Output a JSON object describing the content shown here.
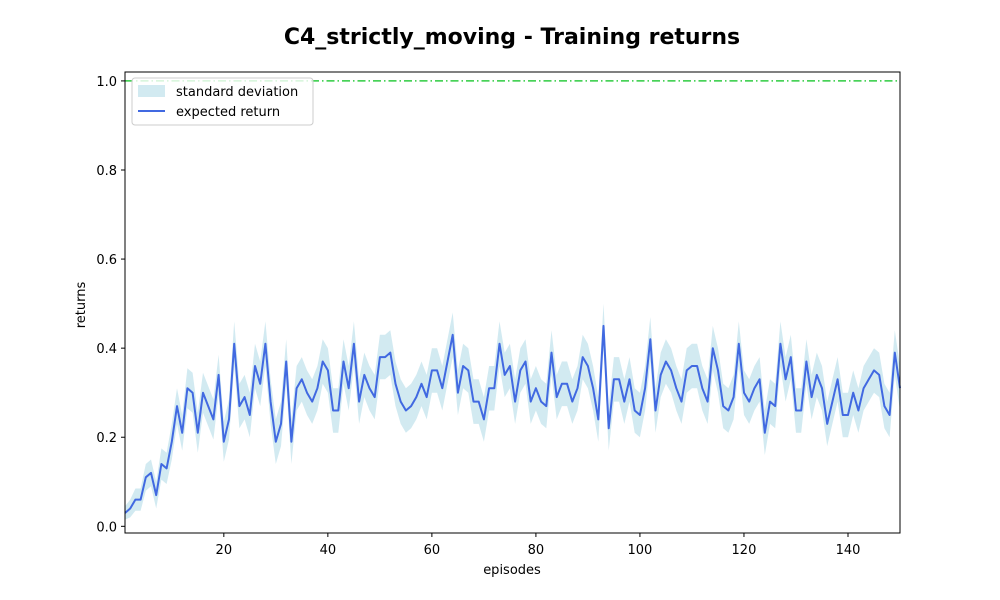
{
  "chart_data": {
    "type": "line",
    "title": "C4_strictly_moving - Training returns",
    "xlabel": "episodes",
    "ylabel": "returns",
    "xlim": [
      1,
      150
    ],
    "ylim": [
      -0.015,
      1.02
    ],
    "xticks": [
      20,
      40,
      60,
      80,
      100,
      120,
      140
    ],
    "yticks": [
      0.0,
      0.2,
      0.4,
      0.6,
      0.8,
      1.0
    ],
    "ytick_labels": [
      "0.0",
      "0.2",
      "0.4",
      "0.6",
      "0.8",
      "1.0"
    ],
    "grid": false,
    "legend": {
      "placement": "top-left",
      "entries": [
        "standard deviation",
        "expected return"
      ]
    },
    "reference_line": {
      "y": 1.0,
      "style": "dash-dot",
      "color": "#2ecc40"
    },
    "colors": {
      "line": "#4169e1",
      "band": "#add8e6",
      "reference": "#2ecc40"
    },
    "series": [
      {
        "name": "expected return",
        "x": [
          1,
          2,
          3,
          4,
          5,
          6,
          7,
          8,
          9,
          10,
          11,
          12,
          13,
          14,
          15,
          16,
          17,
          18,
          19,
          20,
          21,
          22,
          23,
          24,
          25,
          26,
          27,
          28,
          29,
          30,
          31,
          32,
          33,
          34,
          35,
          36,
          37,
          38,
          39,
          40,
          41,
          42,
          43,
          44,
          45,
          46,
          47,
          48,
          49,
          50,
          51,
          52,
          53,
          54,
          55,
          56,
          57,
          58,
          59,
          60,
          61,
          62,
          63,
          64,
          65,
          66,
          67,
          68,
          69,
          70,
          71,
          72,
          73,
          74,
          75,
          76,
          77,
          78,
          79,
          80,
          81,
          82,
          83,
          84,
          85,
          86,
          87,
          88,
          89,
          90,
          91,
          92,
          93,
          94,
          95,
          96,
          97,
          98,
          99,
          100,
          101,
          102,
          103,
          104,
          105,
          106,
          107,
          108,
          109,
          110,
          111,
          112,
          113,
          114,
          115,
          116,
          117,
          118,
          119,
          120,
          121,
          122,
          123,
          124,
          125,
          126,
          127,
          128,
          129,
          130,
          131,
          132,
          133,
          134,
          135,
          136,
          137,
          138,
          139,
          140,
          141,
          142,
          143,
          144,
          145,
          146,
          147,
          148,
          149,
          150
        ],
        "values": [
          0.03,
          0.04,
          0.06,
          0.06,
          0.11,
          0.12,
          0.07,
          0.14,
          0.13,
          0.19,
          0.27,
          0.21,
          0.31,
          0.3,
          0.21,
          0.3,
          0.27,
          0.24,
          0.34,
          0.19,
          0.24,
          0.41,
          0.27,
          0.29,
          0.25,
          0.36,
          0.32,
          0.41,
          0.28,
          0.19,
          0.23,
          0.37,
          0.19,
          0.31,
          0.33,
          0.3,
          0.28,
          0.31,
          0.37,
          0.35,
          0.26,
          0.26,
          0.37,
          0.31,
          0.41,
          0.28,
          0.34,
          0.31,
          0.29,
          0.38,
          0.38,
          0.39,
          0.32,
          0.28,
          0.26,
          0.27,
          0.29,
          0.32,
          0.29,
          0.35,
          0.35,
          0.31,
          0.37,
          0.43,
          0.3,
          0.36,
          0.35,
          0.28,
          0.28,
          0.24,
          0.31,
          0.31,
          0.41,
          0.34,
          0.36,
          0.28,
          0.35,
          0.37,
          0.28,
          0.31,
          0.28,
          0.27,
          0.39,
          0.29,
          0.32,
          0.32,
          0.28,
          0.31,
          0.38,
          0.36,
          0.31,
          0.24,
          0.45,
          0.22,
          0.33,
          0.33,
          0.28,
          0.33,
          0.26,
          0.25,
          0.31,
          0.42,
          0.26,
          0.34,
          0.37,
          0.35,
          0.31,
          0.28,
          0.35,
          0.36,
          0.36,
          0.31,
          0.28,
          0.4,
          0.35,
          0.27,
          0.26,
          0.29,
          0.41,
          0.3,
          0.28,
          0.31,
          0.33,
          0.21,
          0.28,
          0.27,
          0.41,
          0.33,
          0.38,
          0.26,
          0.26,
          0.37,
          0.29,
          0.34,
          0.31,
          0.23,
          0.28,
          0.33,
          0.25,
          0.25,
          0.3,
          0.26,
          0.31,
          0.33,
          0.35,
          0.34,
          0.27,
          0.25,
          0.39,
          0.31
        ]
      },
      {
        "name": "standard deviation",
        "x": [
          1,
          2,
          3,
          4,
          5,
          6,
          7,
          8,
          9,
          10,
          11,
          12,
          13,
          14,
          15,
          16,
          17,
          18,
          19,
          20,
          21,
          22,
          23,
          24,
          25,
          26,
          27,
          28,
          29,
          30,
          31,
          32,
          33,
          34,
          35,
          36,
          37,
          38,
          39,
          40,
          41,
          42,
          43,
          44,
          45,
          46,
          47,
          48,
          49,
          50,
          51,
          52,
          53,
          54,
          55,
          56,
          57,
          58,
          59,
          60,
          61,
          62,
          63,
          64,
          65,
          66,
          67,
          68,
          69,
          70,
          71,
          72,
          73,
          74,
          75,
          76,
          77,
          78,
          79,
          80,
          81,
          82,
          83,
          84,
          85,
          86,
          87,
          88,
          89,
          90,
          91,
          92,
          93,
          94,
          95,
          96,
          97,
          98,
          99,
          100,
          101,
          102,
          103,
          104,
          105,
          106,
          107,
          108,
          109,
          110,
          111,
          112,
          113,
          114,
          115,
          116,
          117,
          118,
          119,
          120,
          121,
          122,
          123,
          124,
          125,
          126,
          127,
          128,
          129,
          130,
          131,
          132,
          133,
          134,
          135,
          136,
          137,
          138,
          139,
          140,
          141,
          142,
          143,
          144,
          145,
          146,
          147,
          148,
          149,
          150
        ],
        "spread": [
          0.015,
          0.02,
          0.025,
          0.025,
          0.03,
          0.03,
          0.03,
          0.035,
          0.035,
          0.04,
          0.04,
          0.04,
          0.045,
          0.045,
          0.045,
          0.045,
          0.045,
          0.045,
          0.045,
          0.045,
          0.045,
          0.05,
          0.05,
          0.05,
          0.05,
          0.05,
          0.05,
          0.05,
          0.05,
          0.05,
          0.05,
          0.05,
          0.05,
          0.05,
          0.05,
          0.05,
          0.05,
          0.05,
          0.05,
          0.05,
          0.05,
          0.05,
          0.05,
          0.05,
          0.05,
          0.05,
          0.05,
          0.05,
          0.05,
          0.05,
          0.05,
          0.05,
          0.05,
          0.05,
          0.05,
          0.05,
          0.05,
          0.05,
          0.05,
          0.05,
          0.05,
          0.05,
          0.05,
          0.05,
          0.05,
          0.05,
          0.05,
          0.05,
          0.05,
          0.05,
          0.05,
          0.05,
          0.05,
          0.05,
          0.05,
          0.05,
          0.05,
          0.05,
          0.05,
          0.05,
          0.05,
          0.05,
          0.05,
          0.05,
          0.05,
          0.05,
          0.05,
          0.05,
          0.05,
          0.05,
          0.05,
          0.05,
          0.05,
          0.05,
          0.05,
          0.05,
          0.05,
          0.05,
          0.05,
          0.05,
          0.05,
          0.05,
          0.05,
          0.05,
          0.05,
          0.05,
          0.05,
          0.05,
          0.05,
          0.05,
          0.05,
          0.05,
          0.05,
          0.05,
          0.05,
          0.05,
          0.05,
          0.05,
          0.05,
          0.05,
          0.05,
          0.05,
          0.05,
          0.05,
          0.05,
          0.05,
          0.05,
          0.05,
          0.05,
          0.05,
          0.05,
          0.05,
          0.05,
          0.05,
          0.05,
          0.05,
          0.05,
          0.05,
          0.05,
          0.05,
          0.05,
          0.05,
          0.05,
          0.05,
          0.05,
          0.05,
          0.05,
          0.05,
          0.05,
          0.05
        ]
      }
    ]
  }
}
